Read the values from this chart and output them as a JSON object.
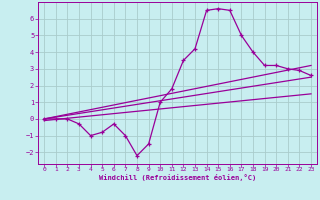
{
  "title": "",
  "xlabel": "Windchill (Refroidissement éolien,°C)",
  "ylabel": "",
  "bg_color": "#c8eef0",
  "line_color": "#990099",
  "grid_color": "#aacccc",
  "xlim": [
    -0.5,
    23.5
  ],
  "ylim": [
    -2.7,
    7.0
  ],
  "yticks": [
    -2,
    -1,
    0,
    1,
    2,
    3,
    4,
    5,
    6
  ],
  "xticks": [
    0,
    1,
    2,
    3,
    4,
    5,
    6,
    7,
    8,
    9,
    10,
    11,
    12,
    13,
    14,
    15,
    16,
    17,
    18,
    19,
    20,
    21,
    22,
    23
  ],
  "main_x": [
    0,
    1,
    2,
    3,
    4,
    5,
    6,
    7,
    8,
    9,
    10,
    11,
    12,
    13,
    14,
    15,
    16,
    17,
    18,
    19,
    20,
    21,
    22,
    23
  ],
  "main_y": [
    0.0,
    0.0,
    0.0,
    -0.3,
    -1.0,
    -0.8,
    -0.3,
    -1.0,
    -2.2,
    -1.5,
    1.0,
    1.8,
    3.5,
    4.2,
    6.5,
    6.6,
    6.5,
    5.0,
    4.0,
    3.2,
    3.2,
    3.0,
    2.9,
    2.6
  ],
  "line1_x": [
    0,
    23
  ],
  "line1_y": [
    0.0,
    3.2
  ],
  "line2_x": [
    0,
    23
  ],
  "line2_y": [
    0.0,
    2.5
  ],
  "line3_x": [
    0,
    23
  ],
  "line3_y": [
    -0.1,
    1.5
  ]
}
